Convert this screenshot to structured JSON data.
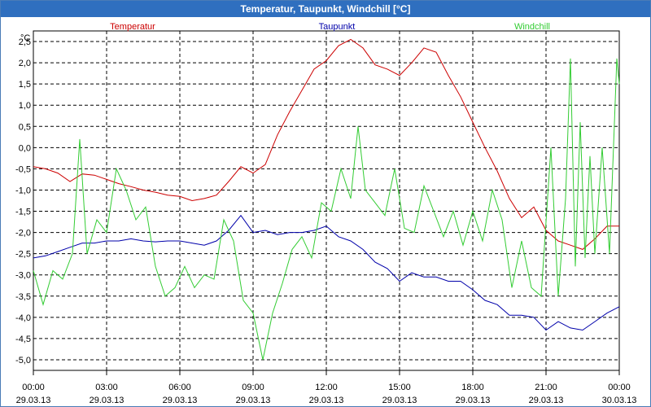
{
  "window": {
    "title": "Temperatur, Taupunkt, Windchill [°C]"
  },
  "chart_data": {
    "type": "line",
    "title": "Temperatur, Taupunkt, Windchill [°C]",
    "ylabel": "°C",
    "xlabel": "",
    "ylim": [
      -5.25,
      2.75
    ],
    "xlim": [
      0,
      24
    ],
    "grid": true,
    "legend_position": "top",
    "y_ticks": [
      -5.0,
      -4.5,
      -4.0,
      -3.5,
      -3.0,
      -2.5,
      -2.0,
      -1.5,
      -1.0,
      -0.5,
      0.0,
      0.5,
      1.0,
      1.5,
      2.0,
      2.5
    ],
    "y_tick_labels": [
      "-5,0",
      "-4,5",
      "-4,0",
      "-3,5",
      "-3,0",
      "-2,5",
      "-2,0",
      "-1,5",
      "-1,0",
      "-0,5",
      "0,0",
      "0,5",
      "1,0",
      "1,5",
      "2,0",
      "2,5"
    ],
    "x_ticks": [
      0,
      3,
      6,
      9,
      12,
      15,
      18,
      21,
      24
    ],
    "x_tick_labels": [
      {
        "time": "00:00",
        "date": "29.03.13"
      },
      {
        "time": "03:00",
        "date": "29.03.13"
      },
      {
        "time": "06:00",
        "date": "29.03.13"
      },
      {
        "time": "09:00",
        "date": "29.03.13"
      },
      {
        "time": "12:00",
        "date": "29.03.13"
      },
      {
        "time": "15:00",
        "date": "29.03.13"
      },
      {
        "time": "18:00",
        "date": "29.03.13"
      },
      {
        "time": "21:00",
        "date": "29.03.13"
      },
      {
        "time": "00:00",
        "date": "30.03.13"
      }
    ],
    "series": [
      {
        "name": "Temperatur",
        "color": "#cc0000",
        "x": [
          0,
          0.5,
          1,
          1.5,
          2,
          2.5,
          3,
          3.5,
          4,
          4.5,
          5,
          5.5,
          6,
          6.5,
          7,
          7.5,
          8,
          8.5,
          9,
          9.5,
          10,
          10.5,
          11,
          11.5,
          12,
          12.5,
          13,
          13.5,
          14,
          14.5,
          15,
          15.5,
          16,
          16.5,
          17,
          17.5,
          18,
          18.5,
          19,
          19.5,
          20,
          20.5,
          21,
          21.5,
          22,
          22.5,
          23,
          23.5,
          24
        ],
        "values": [
          -0.45,
          -0.5,
          -0.6,
          -0.8,
          -0.62,
          -0.65,
          -0.75,
          -0.85,
          -0.92,
          -1.0,
          -1.05,
          -1.12,
          -1.15,
          -1.25,
          -1.2,
          -1.12,
          -0.8,
          -0.45,
          -0.6,
          -0.4,
          0.3,
          0.85,
          1.35,
          1.85,
          2.05,
          2.4,
          2.55,
          2.35,
          1.95,
          1.85,
          1.7,
          2.0,
          2.35,
          2.25,
          1.7,
          1.2,
          0.6,
          0.0,
          -0.55,
          -1.2,
          -1.65,
          -1.4,
          -1.95,
          -2.2,
          -2.3,
          -2.4,
          -2.15,
          -1.85,
          -1.85
        ]
      },
      {
        "name": "Taupunkt",
        "color": "#0000aa",
        "x": [
          0,
          0.5,
          1,
          1.5,
          2,
          2.5,
          3,
          3.5,
          4,
          4.5,
          5,
          5.5,
          6,
          6.5,
          7,
          7.5,
          8,
          8.5,
          9,
          9.5,
          10,
          10.5,
          11,
          11.5,
          12,
          12.5,
          13,
          13.5,
          14,
          14.5,
          15,
          15.5,
          16,
          16.5,
          17,
          17.5,
          18,
          18.5,
          19,
          19.5,
          20,
          20.5,
          21,
          21.5,
          22,
          22.5,
          23,
          23.5,
          24
        ],
        "values": [
          -2.6,
          -2.55,
          -2.45,
          -2.35,
          -2.25,
          -2.25,
          -2.2,
          -2.2,
          -2.15,
          -2.2,
          -2.22,
          -2.2,
          -2.2,
          -2.25,
          -2.3,
          -2.2,
          -1.95,
          -1.6,
          -2.0,
          -1.95,
          -2.05,
          -2.0,
          -2.0,
          -1.95,
          -1.85,
          -2.1,
          -2.2,
          -2.4,
          -2.7,
          -2.85,
          -3.15,
          -2.95,
          -3.05,
          -3.05,
          -3.15,
          -3.15,
          -3.35,
          -3.6,
          -3.7,
          -3.95,
          -3.95,
          -4.0,
          -4.3,
          -4.1,
          -4.25,
          -4.3,
          -4.1,
          -3.9,
          -3.75
        ]
      },
      {
        "name": "Windchill",
        "color": "#33cc33",
        "x": [
          0,
          0.4,
          0.8,
          1.2,
          1.6,
          1.9,
          2.2,
          2.6,
          3.0,
          3.4,
          3.8,
          4.2,
          4.6,
          5.0,
          5.4,
          5.8,
          6.2,
          6.6,
          7.0,
          7.4,
          7.8,
          8.2,
          8.6,
          9.0,
          9.4,
          9.8,
          10.2,
          10.6,
          11.0,
          11.4,
          11.8,
          12.2,
          12.6,
          13.0,
          13.3,
          13.6,
          14.0,
          14.4,
          14.8,
          15.2,
          15.6,
          16.0,
          16.4,
          16.8,
          17.2,
          17.6,
          18.0,
          18.4,
          18.8,
          19.2,
          19.6,
          20.0,
          20.4,
          20.8,
          21.2,
          21.5,
          21.8,
          22.0,
          22.2,
          22.4,
          22.6,
          22.8,
          23.0,
          23.3,
          23.6,
          23.9,
          24.0
        ],
        "values": [
          -2.9,
          -3.7,
          -2.9,
          -3.1,
          -2.5,
          0.2,
          -2.5,
          -1.7,
          -2.0,
          -0.5,
          -1.0,
          -1.7,
          -1.4,
          -2.8,
          -3.5,
          -3.3,
          -2.8,
          -3.3,
          -3.0,
          -3.1,
          -1.7,
          -2.2,
          -3.6,
          -3.9,
          -5.0,
          -3.9,
          -3.2,
          -2.4,
          -2.1,
          -2.6,
          -1.3,
          -1.5,
          -0.5,
          -1.2,
          0.5,
          -1.0,
          -1.3,
          -1.6,
          -0.5,
          -1.9,
          -2.0,
          -0.9,
          -1.5,
          -2.1,
          -1.5,
          -2.3,
          -1.5,
          -2.2,
          -1.0,
          -1.7,
          -3.3,
          -2.2,
          -3.3,
          -3.5,
          0.0,
          -3.5,
          -1.2,
          2.1,
          -2.8,
          0.6,
          -2.6,
          -0.2,
          -2.5,
          0.0,
          -2.5,
          2.1,
          1.5
        ]
      }
    ]
  }
}
